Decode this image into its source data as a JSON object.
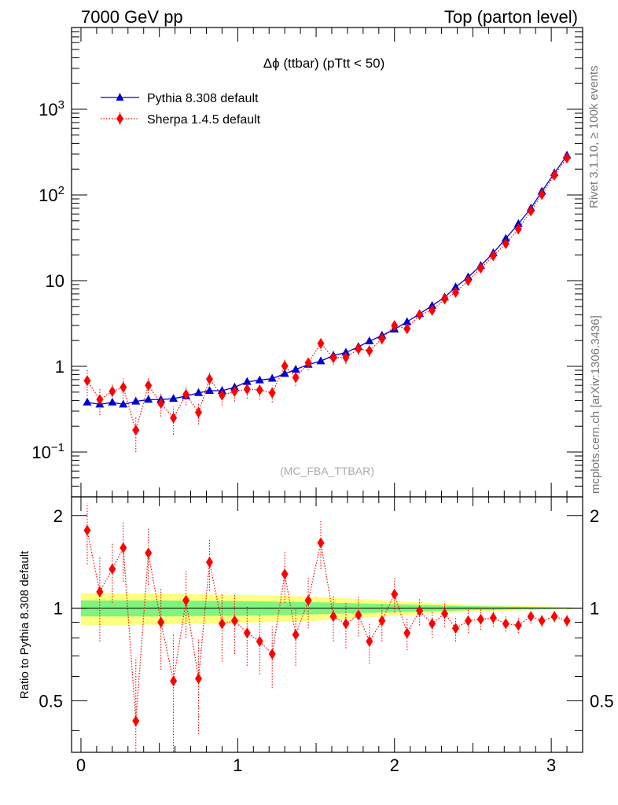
{
  "header": {
    "left": "7000 GeV pp",
    "right": "Top (parton level)"
  },
  "side": {
    "rivet": "Rivet 3.1.10, ≥ 100k events",
    "mcplots": "mcplots.cern.ch [arXiv:1306.3436]"
  },
  "chart_data": [
    {
      "type": "line",
      "title": "Δϕ (ttbar) (pTtt < 50)",
      "watermark": "(MC_FBA_TTBAR)",
      "xlim": [
        -0.06,
        3.2
      ],
      "ylim": [
        0.03,
        9000
      ],
      "yscale": "log",
      "x_ticks": [
        "0",
        "1",
        "2",
        "3"
      ],
      "y_ticks": [
        {
          "value": 0.1,
          "base": "10",
          "exp": "−1"
        },
        {
          "value": 1,
          "label": "1"
        },
        {
          "value": 10,
          "label": "10"
        },
        {
          "value": 100,
          "base": "10",
          "exp": "2"
        },
        {
          "value": 1000,
          "base": "10",
          "exp": "3"
        }
      ],
      "legend": "top-left",
      "series": [
        {
          "name": "Pythia 8.308 default",
          "color": "#0000cc",
          "style": "solid",
          "marker": "triangle",
          "x": [
            0.04,
            0.12,
            0.2,
            0.27,
            0.35,
            0.43,
            0.51,
            0.59,
            0.67,
            0.75,
            0.82,
            0.9,
            0.98,
            1.06,
            1.14,
            1.22,
            1.3,
            1.37,
            1.45,
            1.53,
            1.61,
            1.69,
            1.77,
            1.84,
            1.92,
            2.0,
            2.08,
            2.16,
            2.24,
            2.32,
            2.39,
            2.47,
            2.55,
            2.63,
            2.71,
            2.79,
            2.87,
            2.94,
            3.02,
            3.1
          ],
          "y": [
            0.38,
            0.36,
            0.38,
            0.36,
            0.39,
            0.41,
            0.41,
            0.42,
            0.45,
            0.49,
            0.52,
            0.52,
            0.57,
            0.66,
            0.69,
            0.72,
            0.82,
            0.92,
            1.05,
            1.15,
            1.34,
            1.45,
            1.69,
            1.97,
            2.29,
            2.71,
            3.3,
            4.1,
            5.1,
            6.4,
            8.4,
            11,
            15,
            21,
            31,
            46,
            70,
            110,
            180,
            290
          ]
        },
        {
          "name": "Sherpa 1.4.5 default",
          "color": "#ff0000",
          "style": "dotted",
          "marker": "diamond",
          "x": [
            0.04,
            0.12,
            0.2,
            0.27,
            0.35,
            0.43,
            0.51,
            0.59,
            0.67,
            0.75,
            0.82,
            0.9,
            0.98,
            1.06,
            1.14,
            1.22,
            1.3,
            1.37,
            1.45,
            1.53,
            1.61,
            1.69,
            1.77,
            1.84,
            1.92,
            2.0,
            2.08,
            2.16,
            2.24,
            2.32,
            2.39,
            2.47,
            2.55,
            2.63,
            2.71,
            2.79,
            2.87,
            2.94,
            3.02,
            3.1
          ],
          "y": [
            0.68,
            0.41,
            0.51,
            0.57,
            0.18,
            0.6,
            0.37,
            0.25,
            0.47,
            0.29,
            0.71,
            0.46,
            0.51,
            0.54,
            0.53,
            0.49,
            1.01,
            0.74,
            1.1,
            1.85,
            1.26,
            1.27,
            1.6,
            1.52,
            2.1,
            2.99,
            2.75,
            4.0,
            4.5,
            6.1,
            7.3,
            10,
            14,
            19.5,
            27,
            40,
            65,
            101,
            170,
            270
          ],
          "err": [
            0.23,
            0.14,
            0.13,
            0.15,
            0.08,
            0.15,
            0.11,
            0.09,
            0.12,
            0.08,
            0.15,
            0.11,
            0.12,
            0.12,
            0.12,
            0.11,
            0.21,
            0.15,
            0.2,
            0.33,
            0.22,
            0.21,
            0.25,
            0.23,
            0.3,
            0.4,
            0.35,
            0.45,
            0.5,
            0.6,
            0.7,
            0.9,
            1.1,
            1.4,
            1.8,
            2.5,
            3.5,
            5,
            8,
            12
          ]
        }
      ]
    },
    {
      "type": "line",
      "ylabel": "Ratio to Pythia 8.308 default",
      "xlim": [
        -0.06,
        3.2
      ],
      "ylim": [
        0.34,
        2.3
      ],
      "yscale": "log",
      "y_ticks": [
        {
          "value": 0.5,
          "label": "0.5"
        },
        {
          "value": 1,
          "label": "1"
        },
        {
          "value": 2,
          "label": "2"
        }
      ],
      "bands": {
        "x": [
          0.0,
          0.5,
          1.0,
          1.5,
          2.0,
          2.5,
          3.14
        ],
        "green_half": [
          0.06,
          0.06,
          0.055,
          0.045,
          0.03,
          0.015,
          0.004
        ],
        "yellow_half": [
          0.12,
          0.115,
          0.105,
          0.09,
          0.055,
          0.025,
          0.008
        ],
        "green": "#7ff57f",
        "yellow": "#ffff80"
      },
      "series": [
        {
          "name": "Sherpa 1.4.5 default",
          "color": "#ff0000",
          "style": "dotted",
          "marker": "diamond",
          "x": [
            0.04,
            0.12,
            0.2,
            0.27,
            0.35,
            0.43,
            0.51,
            0.59,
            0.67,
            0.75,
            0.82,
            0.9,
            0.98,
            1.06,
            1.14,
            1.22,
            1.3,
            1.37,
            1.45,
            1.53,
            1.61,
            1.69,
            1.77,
            1.84,
            1.92,
            2.0,
            2.08,
            2.16,
            2.24,
            2.32,
            2.39,
            2.47,
            2.55,
            2.63,
            2.71,
            2.79,
            2.87,
            2.94,
            3.02,
            3.1
          ],
          "y": [
            1.79,
            1.13,
            1.34,
            1.57,
            0.43,
            1.51,
            0.9,
            0.58,
            1.06,
            0.59,
            1.41,
            0.89,
            0.91,
            0.83,
            0.78,
            0.71,
            1.29,
            0.82,
            1.06,
            1.63,
            0.94,
            0.89,
            0.95,
            0.78,
            0.91,
            1.11,
            0.83,
            0.98,
            0.89,
            0.96,
            0.86,
            0.91,
            0.92,
            0.93,
            0.89,
            0.88,
            0.94,
            0.91,
            0.94,
            0.91
          ],
          "err": [
            0.4,
            0.35,
            0.3,
            0.35,
            0.25,
            0.32,
            0.27,
            0.24,
            0.26,
            0.2,
            0.27,
            0.22,
            0.2,
            0.18,
            0.17,
            0.16,
            0.25,
            0.17,
            0.2,
            0.29,
            0.16,
            0.15,
            0.14,
            0.12,
            0.13,
            0.14,
            0.1,
            0.1,
            0.09,
            0.09,
            0.08,
            0.08,
            0.07,
            0.06,
            0.05,
            0.05,
            0.05,
            0.04,
            0.04,
            0.04
          ]
        }
      ]
    }
  ]
}
